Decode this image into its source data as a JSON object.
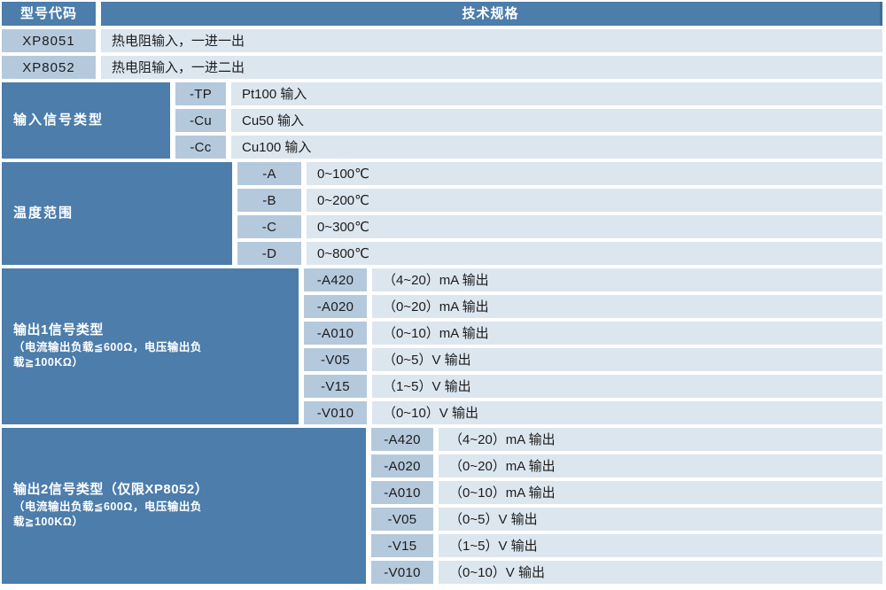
{
  "colors": {
    "header_bg": "#4c7dab",
    "header_text": "#ffffff",
    "code_cell_bg": "#b5c9dd",
    "desc_cell_bg": "#dce6ef",
    "text": "#1c1c1c",
    "header_border": "#3e6c99",
    "page_bg": "#ffffff"
  },
  "table": {
    "header": {
      "model_col_label": "型号代码",
      "spec_col_label": "技术规格"
    },
    "models": [
      {
        "code": "XP8051",
        "desc": "热电阻输入，一进一出"
      },
      {
        "code": "XP8052",
        "desc": "热电阻输入，一进二出"
      }
    ],
    "sections": [
      {
        "title": "输入信号类型",
        "rows": [
          {
            "code": "-TP",
            "desc": "Pt100 输入"
          },
          {
            "code": "-Cu",
            "desc": "Cu50 输入"
          },
          {
            "code": "-Cc",
            "desc": "Cu100 输入"
          }
        ]
      },
      {
        "title": "温度范围",
        "rows": [
          {
            "code": "-A",
            "desc": "0~100℃"
          },
          {
            "code": "-B",
            "desc": "0~200℃"
          },
          {
            "code": "-C",
            "desc": "0~300℃"
          },
          {
            "code": "-D",
            "desc": "0~800℃"
          }
        ]
      },
      {
        "title": "输出1信号类型",
        "note_lines": [
          "（电流输出负载≦600Ω，电压输出负",
          "载≧100KΩ）"
        ],
        "rows": [
          {
            "code": "-A420",
            "desc": "（4~20）mA 输出"
          },
          {
            "code": "-A020",
            "desc": "（0~20）mA 输出"
          },
          {
            "code": "-A010",
            "desc": "（0~10）mA 输出"
          },
          {
            "code": "-V05",
            "desc": "（0~5）V 输出"
          },
          {
            "code": "-V15",
            "desc": "（1~5）V 输出"
          },
          {
            "code": "-V010",
            "desc": "（0~10）V 输出"
          }
        ]
      },
      {
        "title": "输出2信号类型（仅限XP8052）",
        "note_lines": [
          "（电流输出负载≦600Ω，电压输出负",
          "载≧100KΩ）"
        ],
        "rows": [
          {
            "code": "-A420",
            "desc": "（4~20）mA 输出"
          },
          {
            "code": "-A020",
            "desc": "（0~20）mA 输出"
          },
          {
            "code": "-A010",
            "desc": "（0~10）mA 输出"
          },
          {
            "code": "-V05",
            "desc": "（0~5）V 输出"
          },
          {
            "code": "-V15",
            "desc": "（1~5）V 输出"
          },
          {
            "code": "-V010",
            "desc": "（0~10）V 输出"
          }
        ]
      }
    ]
  }
}
